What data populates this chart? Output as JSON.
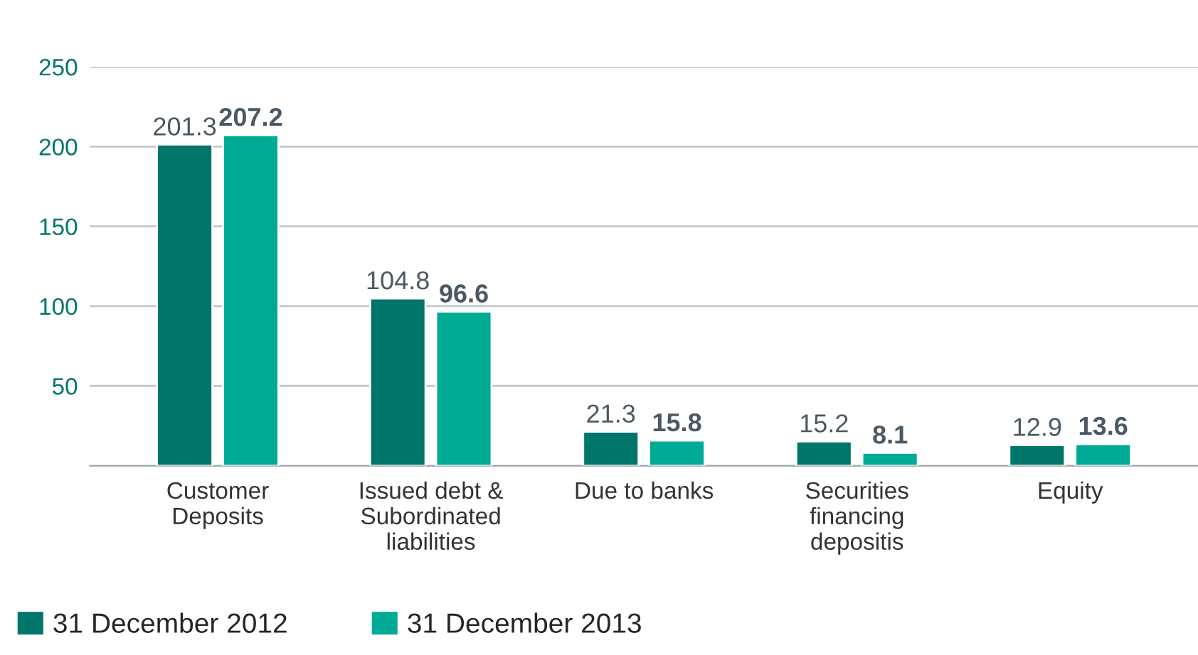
{
  "chart_data": {
    "type": "bar",
    "categories": [
      "Customer\nDeposits",
      "Issued debt &\nSubordinated\nliabilities",
      "Due to banks",
      "Securities\nfinancing\ndepositis",
      "Equity"
    ],
    "series": [
      {
        "name": "31 December 2012",
        "color": "#00766a",
        "values": [
          201.3,
          104.8,
          21.3,
          15.2,
          12.9
        ]
      },
      {
        "name": "31 December 2013",
        "color": "#00ab96",
        "values": [
          207.2,
          96.6,
          15.8,
          8.1,
          13.6
        ]
      }
    ],
    "ylim": [
      0,
      250
    ],
    "yticks": [
      50,
      100,
      150,
      200,
      250
    ],
    "grid": "y",
    "legend": "bottom left",
    "data_labels": true
  }
}
